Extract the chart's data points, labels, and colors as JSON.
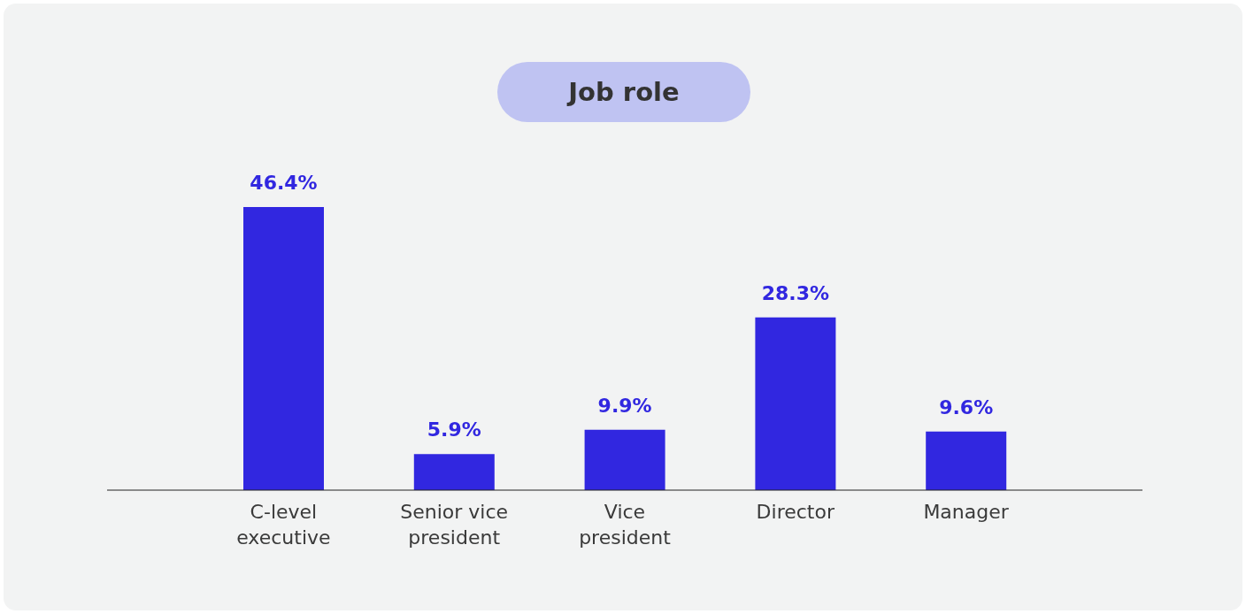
{
  "chart_data": {
    "type": "bar",
    "title": "Job role",
    "categories": [
      "C-level executive",
      "Senior vice president",
      "Vice president",
      "Director",
      "Manager"
    ],
    "values": [
      46.4,
      5.9,
      9.9,
      28.3,
      9.6
    ],
    "value_labels": [
      "46.4%",
      "5.9%",
      "9.9%",
      "28.3%",
      "9.6%"
    ],
    "color": "#3127e0",
    "grid": false,
    "legend": false
  }
}
